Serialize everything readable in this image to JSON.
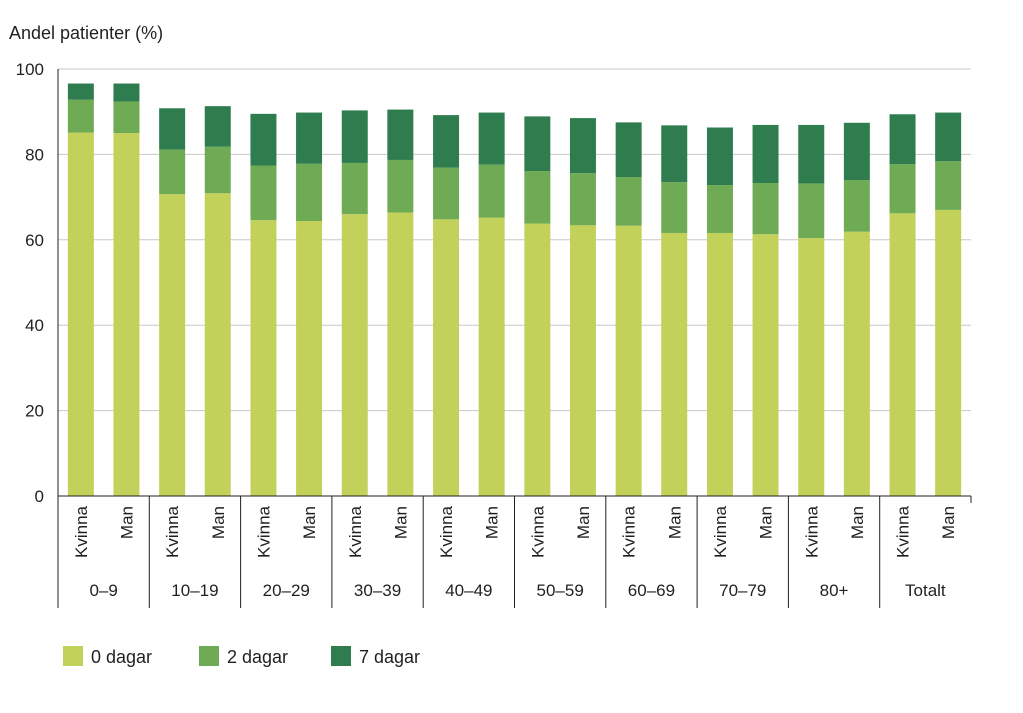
{
  "chart_data": {
    "type": "bar",
    "stacked": true,
    "ylabel": "Andel patienter (%)",
    "ylim": [
      0,
      100
    ],
    "yticks": [
      0,
      20,
      40,
      60,
      80,
      100
    ],
    "grid": true,
    "legend_position": "bottom-left",
    "groups": [
      {
        "label": "0–9",
        "bars": [
          "Kvinna",
          "Man"
        ]
      },
      {
        "label": "10–19",
        "bars": [
          "Kvinna",
          "Man"
        ]
      },
      {
        "label": "20–29",
        "bars": [
          "Kvinna",
          "Man"
        ]
      },
      {
        "label": "30–39",
        "bars": [
          "Kvinna",
          "Man"
        ]
      },
      {
        "label": "40–49",
        "bars": [
          "Kvinna",
          "Man"
        ]
      },
      {
        "label": "50–59",
        "bars": [
          "Kvinna",
          "Man"
        ]
      },
      {
        "label": "60–69",
        "bars": [
          "Kvinna",
          "Man"
        ]
      },
      {
        "label": "70–79",
        "bars": [
          "Kvinna",
          "Man"
        ]
      },
      {
        "label": "80+",
        "bars": [
          "Kvinna",
          "Man"
        ]
      },
      {
        "label": "Totalt",
        "bars": [
          "Kvinna",
          "Man"
        ]
      }
    ],
    "series": [
      {
        "name": "0 dagar",
        "color": "#c2d15a",
        "values": [
          85.1,
          85.0,
          70.7,
          70.9,
          64.6,
          64.4,
          66.0,
          66.4,
          64.8,
          65.2,
          63.8,
          63.4,
          63.3,
          61.6,
          61.6,
          61.3,
          60.4,
          61.9,
          66.2,
          67.0
        ]
      },
      {
        "name": "2 dagar",
        "color": "#6fab55",
        "values": [
          7.7,
          7.4,
          10.4,
          10.9,
          12.8,
          13.4,
          12.0,
          12.3,
          12.1,
          12.4,
          12.3,
          12.2,
          11.4,
          11.9,
          11.2,
          12.0,
          12.8,
          12.1,
          11.5,
          11.4
        ]
      },
      {
        "name": "7 dagar",
        "color": "#2f7d4e",
        "values": [
          3.8,
          4.2,
          9.7,
          9.5,
          12.1,
          12.0,
          12.3,
          11.8,
          12.3,
          12.2,
          12.8,
          12.9,
          12.8,
          13.3,
          13.5,
          13.6,
          13.7,
          13.4,
          11.7,
          11.4
        ]
      }
    ]
  }
}
